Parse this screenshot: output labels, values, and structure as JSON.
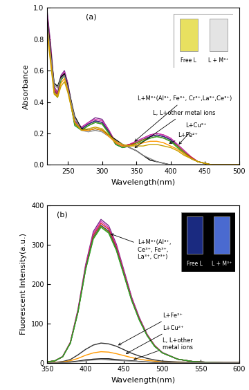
{
  "chart_data": [
    {
      "type": "line",
      "title": "(a)",
      "x_label": "Wavelength(nm)",
      "y_label": "Absorbance",
      "xlim": [
        220,
        500
      ],
      "ylim": [
        0.0,
        1.0
      ],
      "xticks": [
        250,
        300,
        350,
        400,
        450,
        500
      ],
      "yticks": [
        0.0,
        0.2,
        0.4,
        0.6,
        0.8,
        1.0
      ],
      "x": [
        220,
        225,
        230,
        235,
        240,
        245,
        250,
        260,
        270,
        280,
        290,
        300,
        310,
        320,
        330,
        340,
        350,
        360,
        370,
        380,
        390,
        400,
        410,
        420,
        430,
        440,
        450,
        460,
        480,
        500
      ],
      "series": [
        {
          "color": "#7b2a8c",
          "values": [
            0.97,
            0.76,
            0.5,
            0.46,
            0.57,
            0.6,
            0.52,
            0.28,
            0.24,
            0.27,
            0.3,
            0.29,
            0.22,
            0.14,
            0.12,
            0.13,
            0.15,
            0.17,
            0.19,
            0.2,
            0.19,
            0.17,
            0.13,
            0.09,
            0.05,
            0.02,
            0.01,
            0.0,
            0.0,
            0.0
          ]
        },
        {
          "color": "#d633b0",
          "values": [
            0.95,
            0.74,
            0.49,
            0.45,
            0.56,
            0.59,
            0.51,
            0.27,
            0.24,
            0.27,
            0.29,
            0.28,
            0.22,
            0.14,
            0.12,
            0.13,
            0.15,
            0.17,
            0.19,
            0.2,
            0.19,
            0.17,
            0.13,
            0.09,
            0.05,
            0.02,
            0.01,
            0.0,
            0.0,
            0.0
          ]
        },
        {
          "color": "#d62728",
          "values": [
            0.92,
            0.72,
            0.48,
            0.45,
            0.55,
            0.58,
            0.5,
            0.27,
            0.23,
            0.26,
            0.28,
            0.27,
            0.21,
            0.14,
            0.12,
            0.13,
            0.14,
            0.16,
            0.18,
            0.19,
            0.18,
            0.16,
            0.12,
            0.08,
            0.05,
            0.02,
            0.01,
            0.0,
            0.0,
            0.0
          ]
        },
        {
          "color": "#1f2a8c",
          "values": [
            0.9,
            0.7,
            0.47,
            0.44,
            0.55,
            0.58,
            0.5,
            0.26,
            0.23,
            0.26,
            0.28,
            0.27,
            0.21,
            0.13,
            0.11,
            0.12,
            0.14,
            0.16,
            0.18,
            0.19,
            0.18,
            0.16,
            0.12,
            0.08,
            0.04,
            0.02,
            0.01,
            0.0,
            0.0,
            0.0
          ]
        },
        {
          "color": "#8a8a00",
          "values": [
            0.88,
            0.69,
            0.46,
            0.43,
            0.54,
            0.57,
            0.49,
            0.26,
            0.22,
            0.25,
            0.27,
            0.26,
            0.2,
            0.13,
            0.11,
            0.12,
            0.14,
            0.16,
            0.17,
            0.18,
            0.17,
            0.15,
            0.12,
            0.08,
            0.04,
            0.02,
            0.01,
            0.0,
            0.0,
            0.0
          ]
        },
        {
          "color": "#2ca02c",
          "values": [
            0.86,
            0.68,
            0.46,
            0.43,
            0.54,
            0.57,
            0.49,
            0.25,
            0.22,
            0.25,
            0.27,
            0.26,
            0.2,
            0.13,
            0.11,
            0.12,
            0.13,
            0.15,
            0.17,
            0.18,
            0.17,
            0.15,
            0.11,
            0.07,
            0.04,
            0.02,
            0.01,
            0.0,
            0.0,
            0.0
          ]
        },
        {
          "color": "#000000",
          "values": [
            0.93,
            0.72,
            0.52,
            0.5,
            0.56,
            0.58,
            0.5,
            0.31,
            0.23,
            0.22,
            0.23,
            0.22,
            0.19,
            0.16,
            0.13,
            0.11,
            0.09,
            0.06,
            0.03,
            0.02,
            0.01,
            0.0,
            0.0,
            0.0,
            0.0,
            0.0,
            0.0,
            0.0,
            0.0,
            0.0
          ]
        },
        {
          "color": "#888888",
          "values": [
            0.9,
            0.7,
            0.51,
            0.49,
            0.55,
            0.57,
            0.49,
            0.3,
            0.22,
            0.21,
            0.22,
            0.21,
            0.18,
            0.15,
            0.13,
            0.11,
            0.09,
            0.06,
            0.04,
            0.02,
            0.01,
            0.0,
            0.0,
            0.0,
            0.0,
            0.0,
            0.0,
            0.0,
            0.0,
            0.0
          ]
        },
        {
          "color": "#ff9900",
          "values": [
            0.85,
            0.66,
            0.46,
            0.44,
            0.52,
            0.55,
            0.47,
            0.27,
            0.22,
            0.22,
            0.23,
            0.22,
            0.18,
            0.14,
            0.12,
            0.12,
            0.13,
            0.14,
            0.15,
            0.15,
            0.14,
            0.12,
            0.1,
            0.07,
            0.04,
            0.02,
            0.01,
            0.0,
            0.0,
            0.0
          ]
        },
        {
          "color": "#c8a000",
          "values": [
            0.83,
            0.64,
            0.45,
            0.43,
            0.5,
            0.53,
            0.46,
            0.27,
            0.22,
            0.23,
            0.24,
            0.23,
            0.19,
            0.15,
            0.13,
            0.12,
            0.12,
            0.12,
            0.13,
            0.13,
            0.12,
            0.11,
            0.09,
            0.06,
            0.04,
            0.02,
            0.01,
            0.0,
            0.0,
            0.0
          ]
        }
      ],
      "annotations": [
        "L+M³⁺(Al³⁺, Fe³⁺, Cr³⁺,La³⁺,Ce³⁺)",
        "L, L+other metal ions",
        "L+Cu²⁺",
        "L+Fe²⁺"
      ],
      "insets": [
        "Free L",
        "L + M³⁺"
      ]
    },
    {
      "type": "line",
      "title": "(b)",
      "x_label": "Wavelength(nm)",
      "y_label": "Fluorescent Intensity(a.u.)",
      "xlim": [
        350,
        600
      ],
      "ylim": [
        0,
        400
      ],
      "xticks": [
        350,
        400,
        450,
        500,
        550,
        600
      ],
      "yticks": [
        0,
        100,
        200,
        300,
        400
      ],
      "x": [
        350,
        360,
        370,
        380,
        390,
        400,
        410,
        420,
        430,
        440,
        450,
        460,
        470,
        480,
        490,
        500,
        520,
        540,
        560,
        580,
        600
      ],
      "series": [
        {
          "color": "#7b2a8c",
          "values": [
            2,
            5,
            16,
            52,
            136,
            250,
            334,
            365,
            349,
            302,
            235,
            167,
            115,
            73,
            44,
            26,
            9,
            3,
            1,
            0,
            0
          ]
        },
        {
          "color": "#d633b0",
          "values": [
            2,
            5,
            16,
            51,
            134,
            247,
            329,
            360,
            344,
            298,
            231,
            165,
            113,
            72,
            43,
            26,
            9,
            3,
            1,
            0,
            0
          ]
        },
        {
          "color": "#d62728",
          "values": [
            2,
            5,
            15,
            51,
            132,
            243,
            325,
            355,
            340,
            294,
            228,
            162,
            112,
            71,
            43,
            25,
            9,
            3,
            1,
            0,
            0
          ]
        },
        {
          "color": "#1f2a8c",
          "values": [
            2,
            5,
            15,
            50,
            130,
            240,
            320,
            350,
            335,
            290,
            225,
            160,
            110,
            70,
            42,
            25,
            9,
            3,
            1,
            0,
            0
          ]
        },
        {
          "color": "#8a8a00",
          "values": [
            2,
            5,
            15,
            50,
            129,
            238,
            318,
            348,
            333,
            288,
            224,
            159,
            109,
            70,
            42,
            25,
            9,
            3,
            1,
            0,
            0
          ]
        },
        {
          "color": "#2ca02c",
          "values": [
            2,
            5,
            15,
            49,
            128,
            237,
            315,
            345,
            330,
            286,
            222,
            158,
            108,
            69,
            41,
            25,
            9,
            3,
            1,
            0,
            0
          ]
        },
        {
          "color": "#333333",
          "values": [
            0,
            1,
            3,
            8,
            20,
            34,
            45,
            50,
            48,
            42,
            33,
            24,
            17,
            11,
            7,
            4,
            2,
            1,
            0,
            0,
            0
          ]
        },
        {
          "color": "#ff9900",
          "values": [
            0,
            1,
            2,
            5,
            11,
            19,
            25,
            28,
            27,
            23,
            18,
            13,
            9,
            6,
            4,
            2,
            1,
            0,
            0,
            0,
            0
          ]
        },
        {
          "color": "#000000",
          "values": [
            0,
            0,
            1,
            2,
            4,
            7,
            9,
            10,
            10,
            8,
            6,
            5,
            3,
            2,
            1,
            1,
            0,
            0,
            0,
            0,
            0
          ]
        },
        {
          "color": "#888888",
          "values": [
            0,
            0,
            1,
            1,
            3,
            5,
            7,
            8,
            7,
            6,
            5,
            4,
            3,
            2,
            1,
            1,
            0,
            0,
            0,
            0,
            0
          ]
        }
      ],
      "annotations": [
        "L+M³⁺(Al³⁺,\nCe³⁺, Fe³⁺,\nLa³⁺, Cr³⁺)",
        "L+Fe²⁺",
        "L+Cu²⁺",
        "L, L+other\nmetal ions"
      ],
      "insets": [
        "Free L",
        "L + M³⁺"
      ]
    }
  ]
}
